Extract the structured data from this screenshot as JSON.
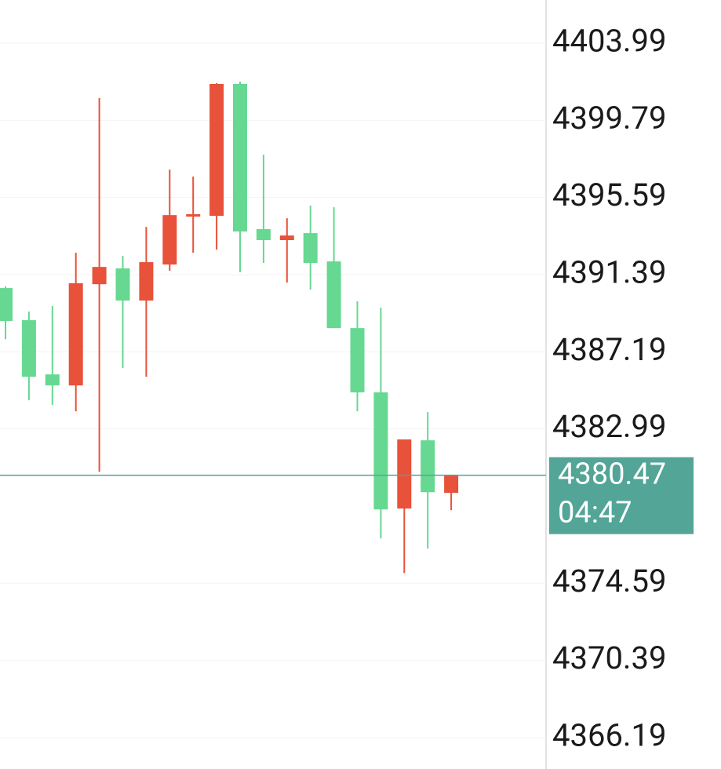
{
  "chart_data": {
    "type": "candlestick",
    "open": [
      4390.66,
      4388.91,
      4385.96,
      4385.36,
      4390.87,
      4391.73,
      4389.98,
      4391.94,
      4394.55,
      4394.59,
      4401.77,
      4393.87,
      4393.27,
      4393.65,
      4392.11,
      4388.48,
      4384.98,
      4378.66,
      4382.37,
      4379.51
    ],
    "high": [
      4390.75,
      4389.38,
      4389.68,
      4392.58,
      4401.0,
      4392.41,
      4393.99,
      4397.11,
      4396.73,
      4401.81,
      4401.9,
      4397.92,
      4394.46,
      4395.15,
      4395.06,
      4389.94,
      4389.59,
      4382.42,
      4383.91,
      4380.47
    ],
    "low": [
      4387.88,
      4384.55,
      4384.3,
      4383.95,
      4380.66,
      4386.3,
      4385.83,
      4391.6,
      4392.58,
      4392.75,
      4391.52,
      4392.03,
      4390.96,
      4390.58,
      4388.48,
      4383.95,
      4377.03,
      4375.15,
      4376.48,
      4378.57
    ],
    "close": [
      4388.87,
      4385.83,
      4385.36,
      4390.92,
      4391.81,
      4389.98,
      4392.07,
      4394.63,
      4394.68,
      4401.77,
      4393.74,
      4393.27,
      4393.52,
      4392.03,
      4388.48,
      4384.98,
      4378.61,
      4382.42,
      4379.55,
      4380.47
    ],
    "up_color": "#e8513a",
    "down_color": "#66d891",
    "ylim": [
      4364.48,
      4406.34
    ],
    "yticks": [
      4366.19,
      4370.39,
      4374.59,
      4382.99,
      4387.19,
      4391.39,
      4395.59,
      4399.79,
      4403.99
    ],
    "grid": true,
    "last_price": 4380.47,
    "countdown": "04:47",
    "last_price_color": "#52a597"
  }
}
